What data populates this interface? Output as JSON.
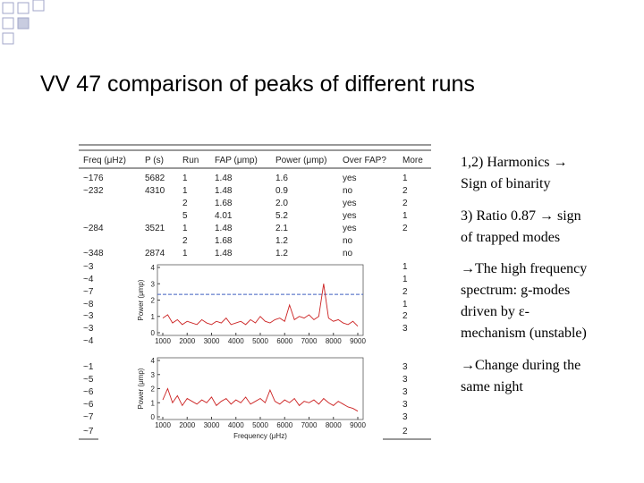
{
  "title": "VV 47 comparison of peaks of different runs",
  "table": {
    "header": [
      "Freq (μHz)",
      "P (s)",
      "Run",
      "FAP (μmp)",
      "Power (μmp)",
      "Over FAP?",
      "More"
    ],
    "rows": [
      [
        "~176",
        "5682",
        "1",
        "1.48",
        "1.6",
        "yes",
        "1"
      ],
      [
        "~232",
        "4310",
        "1",
        "1.48",
        "0.9",
        "no",
        "2"
      ],
      [
        null,
        null,
        "2",
        "1.68",
        "2.0",
        "yes",
        "2"
      ],
      [
        null,
        null,
        "5",
        "4.01",
        "5.2",
        "yes",
        "1"
      ],
      [
        "~284",
        "3521",
        "1",
        "1.48",
        "2.1",
        "yes",
        "2"
      ],
      [
        null,
        null,
        "2",
        "1.68",
        "1.2",
        "no",
        null
      ],
      [
        "~348",
        "2874",
        "1",
        "1.48",
        "1.2",
        "no",
        null
      ],
      [
        "~3",
        null,
        null,
        null,
        null,
        null,
        "1"
      ],
      [
        "~4",
        null,
        null,
        null,
        null,
        null,
        "1"
      ],
      [
        "~7",
        null,
        null,
        null,
        null,
        null,
        "2"
      ],
      [
        "~8",
        null,
        null,
        null,
        null,
        null,
        "1"
      ],
      [
        "~3",
        null,
        null,
        null,
        null,
        null,
        "2"
      ],
      [
        "~3",
        null,
        null,
        null,
        null,
        null,
        "3"
      ],
      [
        "~4",
        null,
        null,
        null,
        null,
        null,
        null
      ],
      [
        "~1",
        null,
        null,
        null,
        null,
        null,
        "3"
      ],
      [
        "~5",
        null,
        null,
        null,
        null,
        null,
        "3"
      ],
      [
        "~6",
        null,
        null,
        null,
        null,
        null,
        "3"
      ],
      [
        "~6",
        null,
        null,
        null,
        null,
        null,
        "3"
      ],
      [
        "~7",
        null,
        null,
        null,
        null,
        null,
        "3"
      ],
      [
        "~7",
        null,
        null,
        null,
        null,
        null,
        "2"
      ]
    ]
  },
  "plots": [
    {
      "type": "line",
      "ylabel": "Power (μmp)",
      "color": "#cc2222",
      "fap_line": 2.35,
      "fap_color": "#4060c0",
      "xlim": [
        1000,
        9000
      ],
      "ylim": [
        0,
        4
      ],
      "xticks": [
        1000,
        2000,
        3000,
        4000,
        5000,
        6000,
        7000,
        8000,
        9000
      ],
      "yticks": [
        0,
        1,
        2,
        3,
        4
      ],
      "x": [
        1000,
        1200,
        1400,
        1600,
        1800,
        2000,
        2200,
        2400,
        2600,
        2800,
        3000,
        3200,
        3400,
        3600,
        3800,
        4000,
        4200,
        4400,
        4600,
        4800,
        5000,
        5200,
        5400,
        5600,
        5800,
        6000,
        6200,
        6400,
        6600,
        6800,
        7000,
        7200,
        7400,
        7600,
        7800,
        8000,
        8200,
        8400,
        8600,
        8800,
        9000
      ],
      "values": [
        0.9,
        1.1,
        0.6,
        0.8,
        0.5,
        0.7,
        0.6,
        0.5,
        0.8,
        0.6,
        0.5,
        0.7,
        0.6,
        0.9,
        0.5,
        0.6,
        0.7,
        0.5,
        0.8,
        0.6,
        1.0,
        0.7,
        0.6,
        0.8,
        0.9,
        0.7,
        1.7,
        0.8,
        1.0,
        0.9,
        1.1,
        0.8,
        1.0,
        3.0,
        0.9,
        0.7,
        0.8,
        0.6,
        0.5,
        0.7,
        0.4
      ]
    },
    {
      "type": "line",
      "ylabel": "Power (μmp)",
      "xlabel": "Frequency (μHz)",
      "color": "#cc2222",
      "xlim": [
        1000,
        9000
      ],
      "ylim": [
        0,
        4
      ],
      "xticks": [
        1000,
        2000,
        3000,
        4000,
        5000,
        6000,
        7000,
        8000,
        9000
      ],
      "yticks": [
        0,
        1,
        2,
        3,
        4
      ],
      "x": [
        1000,
        1200,
        1400,
        1600,
        1800,
        2000,
        2200,
        2400,
        2600,
        2800,
        3000,
        3200,
        3400,
        3600,
        3800,
        4000,
        4200,
        4400,
        4600,
        4800,
        5000,
        5200,
        5400,
        5600,
        5800,
        6000,
        6200,
        6400,
        6600,
        6800,
        7000,
        7200,
        7400,
        7600,
        7800,
        8000,
        8200,
        8400,
        8600,
        8800,
        9000
      ],
      "values": [
        1.2,
        2.0,
        1.0,
        1.5,
        0.8,
        1.3,
        1.1,
        0.9,
        1.2,
        1.0,
        1.4,
        0.8,
        1.1,
        1.3,
        0.9,
        1.2,
        1.0,
        1.4,
        0.9,
        1.1,
        1.3,
        1.0,
        1.9,
        1.1,
        0.9,
        1.2,
        1.0,
        1.3,
        0.8,
        1.1,
        1.0,
        1.2,
        0.9,
        1.3,
        1.0,
        0.8,
        1.1,
        0.9,
        0.7,
        0.6,
        0.4
      ]
    }
  ],
  "bullets": [
    [
      "1,2) Harmonics →",
      "Sign of binarity"
    ],
    [
      "3) Ratio 0.87 → sign",
      "of trapped modes"
    ],
    [
      "→The high frequency",
      "spectrum: g-modes",
      "driven by ε-",
      "mechanism (unstable)"
    ],
    [
      "→Change during the",
      "same night"
    ]
  ]
}
